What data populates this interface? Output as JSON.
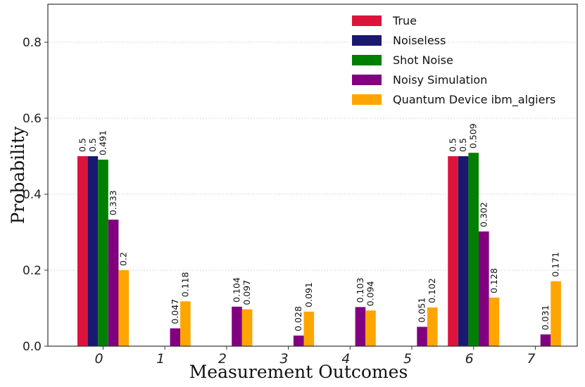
{
  "chart_data": {
    "type": "bar",
    "title": "",
    "xlabel": "Measurement Outcomes",
    "ylabel": "Probability",
    "ylim": [
      0,
      0.9
    ],
    "yticks": [
      "0.0",
      "0.2",
      "0.4",
      "0.6",
      "0.8"
    ],
    "categories": [
      "0",
      "1",
      "2",
      "3",
      "4",
      "5",
      "6",
      "7"
    ],
    "grid": true,
    "legend_position": "top-right",
    "series": [
      {
        "name": "True",
        "color": "#dc143c",
        "values": [
          0.5,
          0,
          0,
          0,
          0,
          0,
          0.5,
          0
        ],
        "labels": [
          "0.5",
          "",
          "",
          "",
          "",
          "",
          "0.5",
          ""
        ]
      },
      {
        "name": "Noiseless",
        "color": "#191970",
        "values": [
          0.5,
          0,
          0,
          0,
          0,
          0,
          0.5,
          0
        ],
        "labels": [
          "0.5",
          "",
          "",
          "",
          "",
          "",
          "0.5",
          ""
        ]
      },
      {
        "name": "Shot Noise",
        "color": "#008000",
        "values": [
          0.491,
          0,
          0,
          0,
          0,
          0,
          0.509,
          0
        ],
        "labels": [
          "0.491",
          "",
          "",
          "",
          "",
          "",
          "0.509",
          ""
        ]
      },
      {
        "name": "Noisy Simulation",
        "color": "#800080",
        "values": [
          0.333,
          0.047,
          0.104,
          0.028,
          0.103,
          0.051,
          0.302,
          0.031
        ],
        "labels": [
          "0.333",
          "0.047",
          "0.104",
          "0.028",
          "0.103",
          "0.051",
          "0.302",
          "0.031"
        ]
      },
      {
        "name": "Quantum Device ibm_algiers",
        "color": "#ffa500",
        "values": [
          0.2,
          0.118,
          0.097,
          0.091,
          0.094,
          0.102,
          0.128,
          0.171
        ],
        "labels": [
          "0.2",
          "0.118",
          "0.097",
          "0.091",
          "0.094",
          "0.102",
          "0.128",
          "0.171"
        ]
      }
    ]
  }
}
